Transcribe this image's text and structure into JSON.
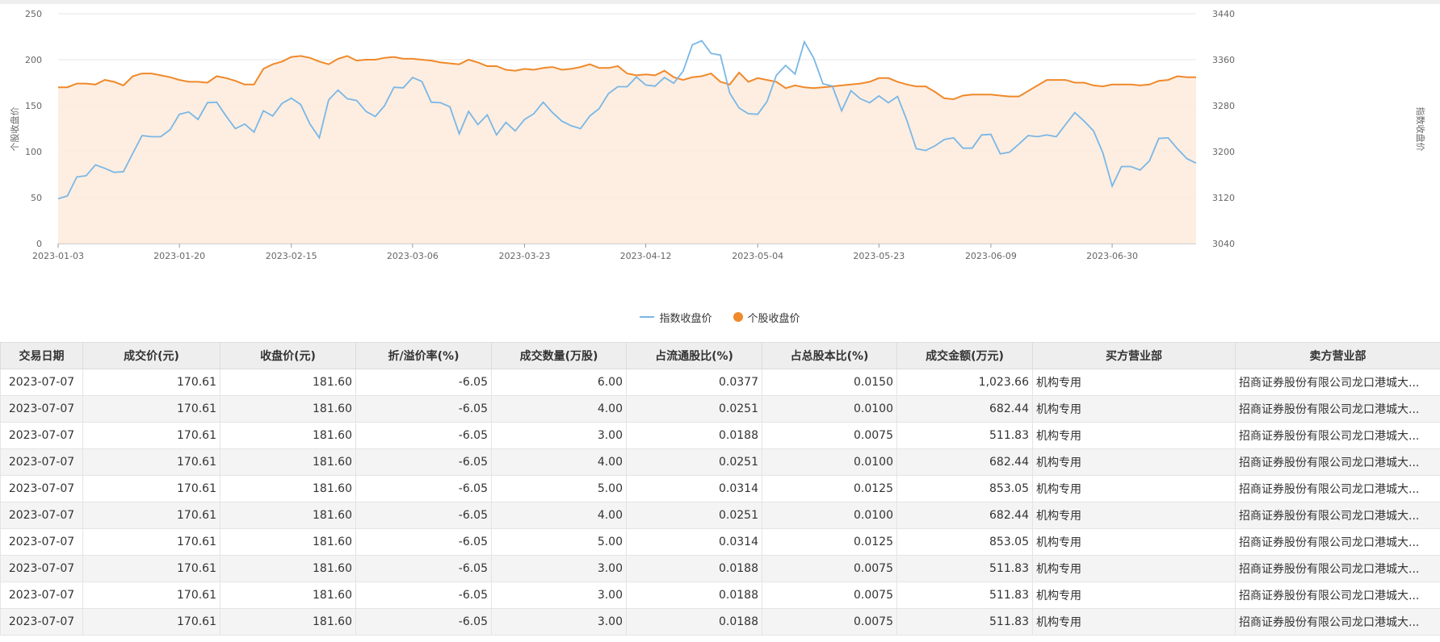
{
  "chart_data": {
    "type": "line",
    "x_tick_labels": [
      "2023-01-03",
      "2023-01-20",
      "2023-02-15",
      "2023-03-06",
      "2023-03-23",
      "2023-04-12",
      "2023-05-04",
      "2023-05-23",
      "2023-06-09",
      "2023-06-30"
    ],
    "left_axis": {
      "label": "个股收盘价",
      "min": 0,
      "max": 250,
      "ticks": [
        0,
        50,
        100,
        150,
        200,
        250
      ]
    },
    "right_axis": {
      "label": "指数收盘价",
      "min": 3040,
      "max": 3440,
      "ticks": [
        3040,
        3120,
        3200,
        3280,
        3360,
        3440
      ]
    },
    "series": [
      {
        "name": "指数收盘价",
        "axis": "right",
        "color": "#7ab7e6",
        "values": [
          3118,
          3123,
          3156,
          3158,
          3177,
          3171,
          3164,
          3165,
          3197,
          3228,
          3226,
          3226,
          3238,
          3265,
          3269,
          3256,
          3285,
          3286,
          3262,
          3240,
          3248,
          3234,
          3271,
          3262,
          3284,
          3293,
          3282,
          3248,
          3224,
          3290,
          3307,
          3292,
          3289,
          3270,
          3261,
          3280,
          3312,
          3311,
          3329,
          3322,
          3286,
          3285,
          3278,
          3231,
          3270,
          3247,
          3264,
          3229,
          3251,
          3236,
          3256,
          3266,
          3286,
          3268,
          3253,
          3245,
          3240,
          3262,
          3275,
          3301,
          3313,
          3313,
          3330,
          3316,
          3314,
          3329,
          3319,
          3340,
          3386,
          3393,
          3371,
          3368,
          3302,
          3276,
          3266,
          3265,
          3287,
          3333,
          3350,
          3335,
          3391,
          3363,
          3318,
          3314,
          3271,
          3306,
          3292,
          3285,
          3297,
          3285,
          3296,
          3254,
          3205,
          3202,
          3210,
          3221,
          3224,
          3206,
          3206,
          3229,
          3230,
          3196,
          3199,
          3213,
          3228,
          3226,
          3229,
          3226,
          3247,
          3268,
          3253,
          3236,
          3198,
          3140,
          3174,
          3174,
          3168,
          3184,
          3223,
          3224,
          3205,
          3188,
          3180
        ]
      },
      {
        "name": "个股收盘价",
        "axis": "left",
        "color": "#f0892a",
        "values": [
          170,
          170,
          174,
          174,
          173,
          178,
          176,
          172,
          182,
          185,
          185,
          183,
          181,
          178,
          176,
          176,
          175,
          182,
          180,
          177,
          173,
          173,
          190,
          195,
          198,
          203,
          204,
          202,
          198,
          195,
          201,
          204,
          199,
          200,
          200,
          202,
          203,
          201,
          201,
          200,
          199,
          197,
          196,
          195,
          200,
          197,
          193,
          193,
          189,
          188,
          190,
          189,
          191,
          192,
          189,
          190,
          192,
          195,
          191,
          191,
          193,
          185,
          183,
          184,
          183,
          188,
          181,
          178,
          181,
          182,
          185,
          176,
          173,
          186,
          176,
          180,
          178,
          176,
          169,
          172,
          170,
          169,
          170,
          171,
          172,
          173,
          174,
          176,
          180,
          180,
          176,
          173,
          171,
          171,
          165,
          158,
          157,
          161,
          162,
          162,
          162,
          161,
          160,
          160,
          166,
          172,
          178,
          178,
          178,
          175,
          175,
          172,
          171,
          173,
          173,
          173,
          172,
          173,
          177,
          178,
          182,
          181,
          181
        ]
      }
    ],
    "legend": [
      "指数收盘价",
      "个股收盘价"
    ],
    "grid": true
  },
  "table": {
    "headers": [
      "交易日期",
      "成交价(元)",
      "收盘价(元)",
      "折/溢价率(%)",
      "成交数量(万股)",
      "占流通股比(%)",
      "占总股本比(%)",
      "成交金额(万元)",
      "买方营业部",
      "卖方营业部"
    ],
    "rows": [
      [
        "2023-07-07",
        "170.61",
        "181.60",
        "-6.05",
        "6.00",
        "0.0377",
        "0.0150",
        "1,023.66",
        "机构专用",
        "招商证券股份有限公司龙口港城大..."
      ],
      [
        "2023-07-07",
        "170.61",
        "181.60",
        "-6.05",
        "4.00",
        "0.0251",
        "0.0100",
        "682.44",
        "机构专用",
        "招商证券股份有限公司龙口港城大..."
      ],
      [
        "2023-07-07",
        "170.61",
        "181.60",
        "-6.05",
        "3.00",
        "0.0188",
        "0.0075",
        "511.83",
        "机构专用",
        "招商证券股份有限公司龙口港城大..."
      ],
      [
        "2023-07-07",
        "170.61",
        "181.60",
        "-6.05",
        "4.00",
        "0.0251",
        "0.0100",
        "682.44",
        "机构专用",
        "招商证券股份有限公司龙口港城大..."
      ],
      [
        "2023-07-07",
        "170.61",
        "181.60",
        "-6.05",
        "5.00",
        "0.0314",
        "0.0125",
        "853.05",
        "机构专用",
        "招商证券股份有限公司龙口港城大..."
      ],
      [
        "2023-07-07",
        "170.61",
        "181.60",
        "-6.05",
        "4.00",
        "0.0251",
        "0.0100",
        "682.44",
        "机构专用",
        "招商证券股份有限公司龙口港城大..."
      ],
      [
        "2023-07-07",
        "170.61",
        "181.60",
        "-6.05",
        "5.00",
        "0.0314",
        "0.0125",
        "853.05",
        "机构专用",
        "招商证券股份有限公司龙口港城大..."
      ],
      [
        "2023-07-07",
        "170.61",
        "181.60",
        "-6.05",
        "3.00",
        "0.0188",
        "0.0075",
        "511.83",
        "机构专用",
        "招商证券股份有限公司龙口港城大..."
      ],
      [
        "2023-07-07",
        "170.61",
        "181.60",
        "-6.05",
        "3.00",
        "0.0188",
        "0.0075",
        "511.83",
        "机构专用",
        "招商证券股份有限公司龙口港城大..."
      ],
      [
        "2023-07-07",
        "170.61",
        "181.60",
        "-6.05",
        "3.00",
        "0.0188",
        "0.0075",
        "511.83",
        "机构专用",
        "招商证券股份有限公司龙口港城大..."
      ]
    ]
  }
}
